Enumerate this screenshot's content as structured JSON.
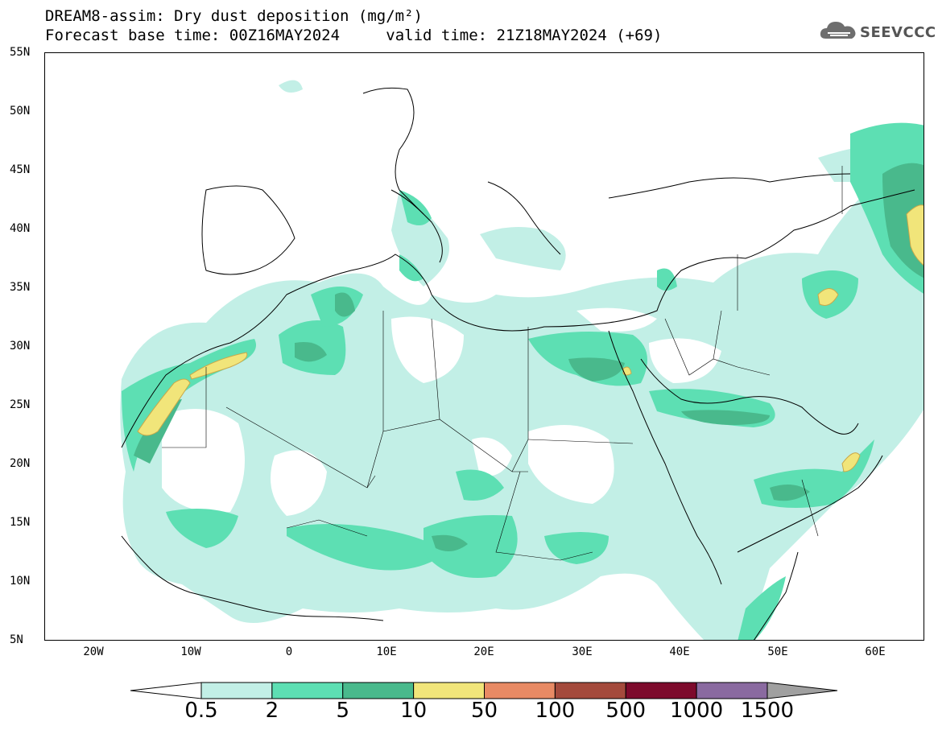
{
  "title": {
    "line1": "DREAM8-assim: Dry dust deposition (mg/m²)",
    "line2_base": "Forecast base time: 00Z16MAY2024",
    "line2_valid": "valid time: 21Z18MAY2024 (+69)"
  },
  "logo": {
    "text": "SEEVCCC",
    "icon": "cloud-icon"
  },
  "map": {
    "projection": "lat-lon",
    "lon_range": [
      -25,
      65
    ],
    "lat_range": [
      5,
      55
    ],
    "y_ticks": [
      "55N",
      "50N",
      "45N",
      "40N",
      "35N",
      "30N",
      "25N",
      "20N",
      "15N",
      "10N",
      "5N"
    ],
    "x_ticks": [
      "20W",
      "10W",
      "0",
      "10E",
      "20E",
      "30E",
      "40E",
      "50E",
      "60E"
    ]
  },
  "legend": {
    "levels": [
      "0.5",
      "2",
      "5",
      "10",
      "50",
      "100",
      "500",
      "1000",
      "1500"
    ],
    "colors": [
      "#c2efe6",
      "#5ddfb3",
      "#49b98c",
      "#f1e57a",
      "#e88a64",
      "#a44a3c",
      "#7d0a2c",
      "#8a6aa0",
      "#a0a0a0"
    ],
    "low_end_color": "#ffffff",
    "high_end_color": "#a0a0a0"
  }
}
